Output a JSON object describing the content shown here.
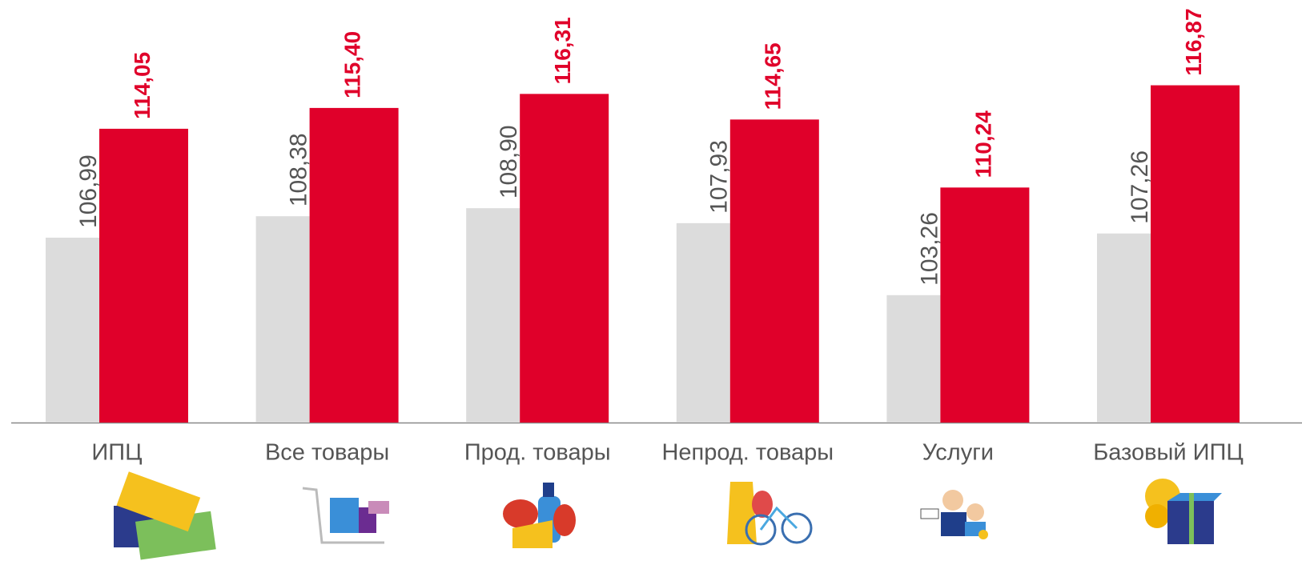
{
  "chart_data": {
    "type": "bar",
    "categories": [
      "ИПЦ",
      "Все товары",
      "Прод. товары",
      "Непрод. товары",
      "Услуги",
      "Базовый ИПЦ"
    ],
    "series": [
      {
        "color": "#dcdcdc",
        "values": [
          106.99,
          108.38,
          108.9,
          107.93,
          103.26,
          107.26
        ],
        "value_labels": [
          "106,99",
          "108,38",
          "108,90",
          "107,93",
          "103,26",
          "107,26"
        ]
      },
      {
        "color": "#e0002a",
        "values": [
          114.05,
          115.4,
          116.31,
          114.65,
          110.24,
          116.87
        ],
        "value_labels": [
          "114,05",
          "115,40",
          "116,31",
          "114,65",
          "110,24",
          "116,87"
        ]
      }
    ],
    "ylim": [
      95,
      122.4
    ]
  }
}
